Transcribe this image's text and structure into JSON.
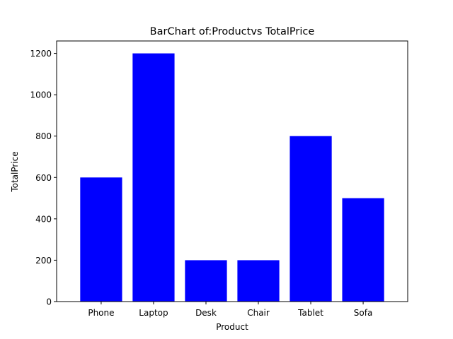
{
  "chart_data": {
    "type": "bar",
    "title": "BarChart of:Productvs TotalPrice",
    "xlabel": "Product",
    "ylabel": "TotalPrice",
    "categories": [
      "Phone",
      "Laptop",
      "Desk",
      "Chair",
      "Tablet",
      "Sofa"
    ],
    "values": [
      600,
      1200,
      200,
      200,
      800,
      500
    ],
    "ylim": [
      0,
      1260
    ],
    "yticks": [
      0,
      200,
      400,
      600,
      800,
      1000,
      1200
    ],
    "bar_color": "#0000ff",
    "grid": false,
    "legend": "none"
  }
}
